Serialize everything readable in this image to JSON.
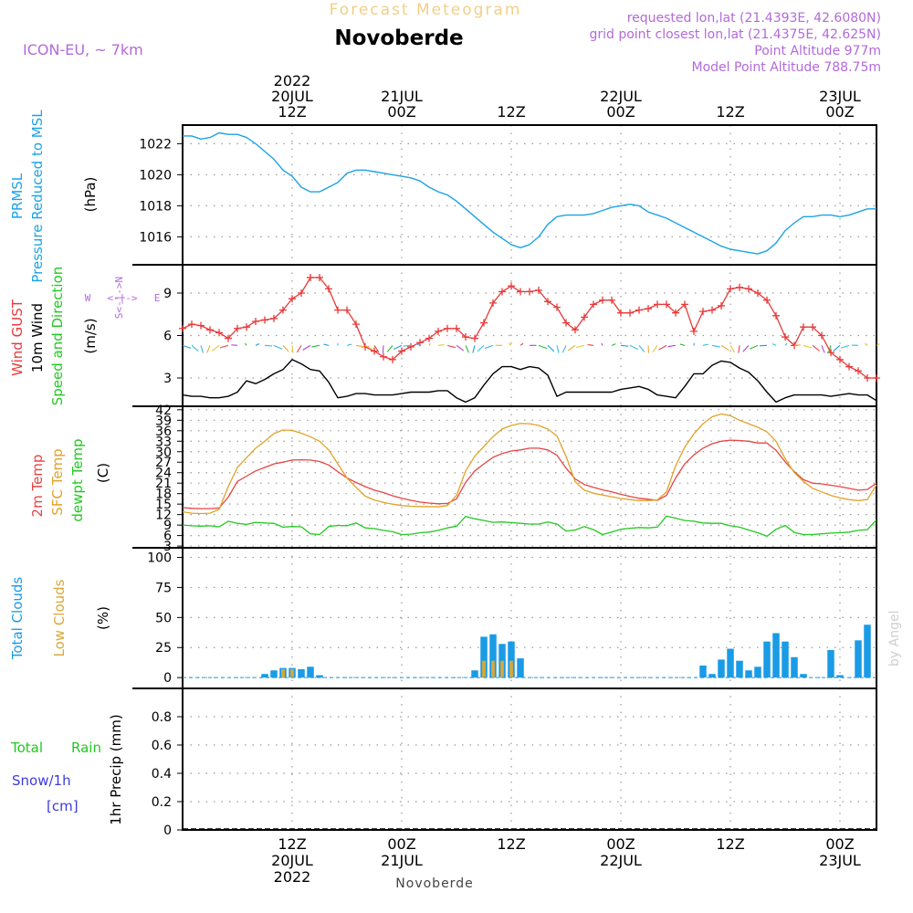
{
  "header": {
    "title": "Forecast Meteogram",
    "station": "Novoberde",
    "model": "ICON-EU, ~ 7km",
    "requested": "requested lon,lat (21.4393E, 42.6080N)",
    "gridpoint": "grid point closest lon,lat (21.4375E, 42.625N)",
    "point_alt": "Point Altitude 977m",
    "model_alt": "Model Point Altitude 788.75m",
    "credit": "by Angel",
    "footer_station": "Novoberde"
  },
  "colors": {
    "pressure": "#1ca3e6",
    "gust": "#e83a3a",
    "wind": "#000000",
    "temp2m": "#e84444",
    "sfctemp": "#e2a229",
    "dewpt": "#22c922",
    "total_clouds": "#1a9be6",
    "low_clouds": "#d9a838",
    "purple": "#b36ad9",
    "rain": "#22c922",
    "snow": "#3b3be0"
  },
  "time_axis": {
    "top_labels": [
      {
        "t": 12,
        "lines": [
          "2022",
          "20JUL",
          "12Z"
        ]
      },
      {
        "t": 24,
        "lines": [
          "21JUL",
          "00Z"
        ]
      },
      {
        "t": 36,
        "lines": [
          "12Z"
        ]
      },
      {
        "t": 48,
        "lines": [
          "22JUL",
          "00Z"
        ]
      },
      {
        "t": 60,
        "lines": [
          "12Z"
        ]
      },
      {
        "t": 72,
        "lines": [
          "23JUL",
          "00Z"
        ]
      }
    ],
    "bottom_labels": [
      {
        "t": 12,
        "lines": [
          "12Z",
          "20JUL",
          "2022"
        ]
      },
      {
        "t": 24,
        "lines": [
          "00Z",
          "21JUL"
        ]
      },
      {
        "t": 36,
        "lines": [
          "12Z"
        ]
      },
      {
        "t": 48,
        "lines": [
          "00Z",
          "22JUL"
        ]
      },
      {
        "t": 60,
        "lines": [
          "12Z"
        ]
      },
      {
        "t": 72,
        "lines": [
          "00Z",
          "23JUL"
        ]
      }
    ],
    "range": [
      0,
      76
    ]
  },
  "panels": {
    "pressure": {
      "labels": [
        "PRMSL",
        "Pressure Reduced to MSL"
      ],
      "unit": "(hPa)",
      "ylim": [
        1014.2,
        1023.2
      ],
      "ticks": [
        1016,
        1018,
        1020,
        1022
      ]
    },
    "wind": {
      "labels": [
        "Wind GUST",
        "10m Wind",
        "Speed and Direction"
      ],
      "unit": "(m/s)",
      "ylim": [
        1,
        11
      ],
      "ticks": [
        3,
        6,
        9
      ],
      "compass": {
        "w": "W",
        "e": "E",
        "n": "N",
        "s": "S",
        "h": "<-|->",
        "v1": "<-|->",
        "v2": "S<-|->N"
      }
    },
    "temp": {
      "labels": [
        "2m Temp",
        "SFC Temp",
        "dewpt Temp"
      ],
      "unit": "(C)",
      "ylim": [
        2.5,
        43
      ],
      "ticks": [
        3,
        6,
        9,
        12,
        15,
        18,
        21,
        24,
        27,
        30,
        33,
        36,
        39,
        42
      ]
    },
    "clouds": {
      "labels": [
        "Total Clouds",
        "Low Clouds"
      ],
      "unit": "(%)",
      "ylim": [
        -9,
        108
      ],
      "ticks": [
        0,
        25,
        50,
        75,
        100
      ]
    },
    "precip": {
      "labels": [
        "Total",
        "Rain",
        "Snow/1h",
        "[cm]"
      ],
      "unit": "1hr Precip (mm)",
      "ylim": [
        0,
        1.0
      ],
      "ticks": [
        "0",
        "0.2",
        "0.4",
        "0.6",
        "0.8"
      ]
    }
  },
  "chart_data": [
    {
      "type": "line",
      "title": "PRMSL Pressure Reduced to MSL",
      "ylabel": "(hPa)",
      "x": [
        0,
        1,
        2,
        3,
        4,
        5,
        6,
        7,
        8,
        9,
        10,
        11,
        12,
        13,
        14,
        15,
        16,
        17,
        18,
        19,
        20,
        21,
        22,
        23,
        24,
        25,
        26,
        27,
        28,
        29,
        30,
        31,
        32,
        33,
        34,
        35,
        36,
        37,
        38,
        39,
        40,
        41,
        42,
        43,
        44,
        45,
        46,
        47,
        48,
        49,
        50,
        51,
        52,
        53,
        54,
        55,
        56,
        57,
        58,
        59,
        60,
        61,
        62,
        63,
        64,
        65,
        66,
        67,
        68,
        69,
        70,
        71,
        72,
        73,
        74,
        75,
        76
      ],
      "values": [
        1022.5,
        1022.5,
        1022.3,
        1022.4,
        1022.7,
        1022.6,
        1022.6,
        1022.4,
        1022.0,
        1021.5,
        1021.0,
        1020.3,
        1019.9,
        1019.2,
        1018.9,
        1018.9,
        1019.2,
        1019.5,
        1020.1,
        1020.3,
        1020.3,
        1020.2,
        1020.1,
        1020.0,
        1019.9,
        1019.8,
        1019.6,
        1019.2,
        1018.9,
        1018.7,
        1018.3,
        1017.8,
        1017.3,
        1016.8,
        1016.3,
        1015.9,
        1015.5,
        1015.3,
        1015.5,
        1016.0,
        1016.8,
        1017.3,
        1017.4,
        1017.4,
        1017.4,
        1017.5,
        1017.7,
        1017.9,
        1018.0,
        1018.1,
        1018.0,
        1017.6,
        1017.4,
        1017.2,
        1016.9,
        1016.6,
        1016.3,
        1016.0,
        1015.7,
        1015.4,
        1015.2,
        1015.1,
        1015.0,
        1014.9,
        1015.1,
        1015.6,
        1016.4,
        1016.9,
        1017.3,
        1017.3,
        1017.4,
        1017.4,
        1017.3,
        1017.4,
        1017.6,
        1017.8,
        1017.8
      ],
      "ylim": [
        1014.2,
        1023.2
      ]
    },
    {
      "type": "line",
      "title": "Wind GUST / 10m Wind Speed and Direction",
      "ylabel": "(m/s)",
      "series": [
        {
          "name": "Wind GUST",
          "values": [
            6.5,
            6.8,
            6.7,
            6.4,
            6.2,
            5.8,
            6.5,
            6.6,
            7.0,
            7.1,
            7.2,
            7.8,
            8.6,
            9.0,
            10.1,
            10.1,
            9.3,
            7.8,
            7.8,
            6.8,
            5.2,
            4.9,
            4.5,
            4.3,
            4.9,
            5.2,
            5.5,
            5.8,
            6.3,
            6.5,
            6.5,
            5.9,
            5.8,
            6.9,
            8.3,
            9.1,
            9.5,
            9.1,
            9.1,
            9.2,
            8.4,
            8.0,
            6.9,
            6.4,
            7.3,
            8.2,
            8.5,
            8.5,
            7.6,
            7.6,
            7.8,
            7.9,
            8.2,
            8.2,
            7.6,
            8.2,
            6.3,
            7.7,
            7.8,
            8.1,
            9.3,
            9.4,
            9.3,
            9.0,
            8.5,
            7.4,
            5.9,
            5.3,
            6.6,
            6.6,
            6.0,
            4.8,
            4.3,
            3.8,
            3.5,
            3.0,
            3.0
          ]
        },
        {
          "name": "10m Wind",
          "values": [
            1.8,
            1.7,
            1.7,
            1.6,
            1.6,
            1.7,
            2.0,
            2.8,
            2.6,
            2.9,
            3.3,
            3.6,
            4.3,
            4.0,
            3.6,
            3.5,
            2.7,
            1.6,
            1.7,
            1.9,
            1.9,
            1.8,
            1.8,
            1.8,
            1.9,
            2.0,
            2.0,
            2.0,
            2.1,
            2.1,
            1.6,
            1.3,
            1.6,
            2.5,
            3.3,
            3.8,
            3.8,
            3.6,
            3.8,
            3.7,
            3.2,
            1.7,
            2.0,
            2.0,
            2.0,
            2.0,
            2.0,
            2.0,
            2.2,
            2.3,
            2.4,
            2.2,
            1.8,
            1.7,
            1.6,
            2.4,
            3.3,
            3.3,
            3.9,
            4.2,
            4.1,
            3.7,
            3.4,
            2.8,
            2.0,
            1.3,
            1.6,
            1.8,
            1.8,
            1.8,
            1.8,
            1.7,
            1.8,
            1.9,
            1.8,
            1.8,
            1.4
          ]
        }
      ],
      "x": [
        0,
        1,
        2,
        3,
        4,
        5,
        6,
        7,
        8,
        9,
        10,
        11,
        12,
        13,
        14,
        15,
        16,
        17,
        18,
        19,
        20,
        21,
        22,
        23,
        24,
        25,
        26,
        27,
        28,
        29,
        30,
        31,
        32,
        33,
        34,
        35,
        36,
        37,
        38,
        39,
        40,
        41,
        42,
        43,
        44,
        45,
        46,
        47,
        48,
        49,
        50,
        51,
        52,
        53,
        54,
        55,
        56,
        57,
        58,
        59,
        60,
        61,
        62,
        63,
        64,
        65,
        66,
        67,
        68,
        69,
        70,
        71,
        72,
        73,
        74,
        75,
        76
      ],
      "ylim": [
        1,
        11
      ]
    },
    {
      "type": "line",
      "title": "2m Temp / SFC Temp / dewpt Temp",
      "ylabel": "(C)",
      "x": [
        0,
        1,
        2,
        3,
        4,
        5,
        6,
        7,
        8,
        9,
        10,
        11,
        12,
        13,
        14,
        15,
        16,
        17,
        18,
        19,
        20,
        21,
        22,
        23,
        24,
        25,
        26,
        27,
        28,
        29,
        30,
        31,
        32,
        33,
        34,
        35,
        36,
        37,
        38,
        39,
        40,
        41,
        42,
        43,
        44,
        45,
        46,
        47,
        48,
        49,
        50,
        51,
        52,
        53,
        54,
        55,
        56,
        57,
        58,
        59,
        60,
        61,
        62,
        63,
        64,
        65,
        66,
        67,
        68,
        69,
        70,
        71,
        72,
        73,
        74,
        75,
        76
      ],
      "series": [
        {
          "name": "2m Temp",
          "values": [
            14,
            13.8,
            13.7,
            13.7,
            13.9,
            17,
            21.5,
            23,
            24.5,
            25.5,
            26.5,
            27,
            27.6,
            27.7,
            27.6,
            27.2,
            26.2,
            24.3,
            22.5,
            21.2,
            20,
            19,
            18.3,
            17.4,
            16.7,
            16.1,
            15.6,
            15.3,
            15.1,
            15.2,
            16.5,
            21.2,
            24.5,
            26.5,
            28.4,
            29.5,
            30.2,
            30.5,
            31,
            31,
            30.5,
            29,
            25.3,
            22.2,
            20.6,
            19.8,
            19.1,
            18.5,
            17.8,
            17.2,
            16.7,
            16.4,
            16.1,
            17.5,
            22.5,
            26.5,
            29.1,
            31,
            32.3,
            33,
            33.3,
            33.2,
            33,
            32.5,
            32.5,
            30.4,
            27.1,
            24.3,
            22,
            21,
            20.8,
            20.4,
            20,
            19.5,
            19,
            19.2,
            21
          ]
        },
        {
          "name": "SFC Temp",
          "values": [
            12.8,
            12.4,
            12.3,
            12.4,
            13.5,
            20,
            25.5,
            28.3,
            31,
            33,
            35.2,
            36.2,
            36.1,
            35.3,
            34.3,
            33,
            30.5,
            26.5,
            22.5,
            19.8,
            17.3,
            16.2,
            15.5,
            15,
            14.6,
            14.4,
            14.3,
            14.3,
            14.2,
            14.6,
            17.5,
            24.5,
            28.7,
            31.5,
            34.3,
            36.5,
            37.5,
            38.1,
            38,
            37.5,
            36.5,
            34.5,
            28.7,
            21.4,
            19,
            18.1,
            17.6,
            17.1,
            16.6,
            16.3,
            16.0,
            16.0,
            16.2,
            18.5,
            26,
            31.3,
            35.1,
            38,
            40,
            40.8,
            40.3,
            39,
            38,
            37,
            35.7,
            33,
            28,
            24,
            21.5,
            19.5,
            18.5,
            17.5,
            16.8,
            16.3,
            16.0,
            16.3,
            20.5
          ]
        },
        {
          "name": "dewpt Temp",
          "values": [
            9,
            8.8,
            8.7,
            8.8,
            8.5,
            10.1,
            9.5,
            9.2,
            9.8,
            9.6,
            9.5,
            8.4,
            8.6,
            8.5,
            6.5,
            6.3,
            8.6,
            8.9,
            8.8,
            9.6,
            8.2,
            8.0,
            7.5,
            7.1,
            6.3,
            6.4,
            6.8,
            7.0,
            7.5,
            8.2,
            8.7,
            11.5,
            10.8,
            10.3,
            9.8,
            9.9,
            9.7,
            9.5,
            9.3,
            9.3,
            9.9,
            9.3,
            7.3,
            7.6,
            8.6,
            7.7,
            6.3,
            7.0,
            7.8,
            8.1,
            8.3,
            8.2,
            8.4,
            11.6,
            11,
            10.3,
            10.1,
            9.6,
            9.5,
            9.5,
            8.8,
            8.4,
            7.6,
            6.8,
            5.8,
            7.8,
            8.9,
            6.9,
            6.3,
            6.3,
            6.5,
            6.7,
            6.8,
            7.0,
            7.5,
            7.7,
            10.5
          ]
        }
      ],
      "ylim": [
        2.5,
        43
      ]
    },
    {
      "type": "bar",
      "title": "Total Clouds / Low Clouds",
      "ylabel": "(%)",
      "series": [
        {
          "name": "Total Clouds",
          "points": [
            [
              9,
              3
            ],
            [
              10,
              6
            ],
            [
              11,
              8
            ],
            [
              12,
              8
            ],
            [
              13,
              7
            ],
            [
              14,
              9
            ],
            [
              15,
              2
            ],
            [
              32,
              6
            ],
            [
              33,
              34
            ],
            [
              34,
              36
            ],
            [
              35,
              28
            ],
            [
              36,
              30
            ],
            [
              37,
              16
            ],
            [
              57,
              10
            ],
            [
              58,
              3
            ],
            [
              59,
              15
            ],
            [
              60,
              24
            ],
            [
              61,
              14
            ],
            [
              62,
              6
            ],
            [
              63,
              9
            ],
            [
              64,
              30
            ],
            [
              65,
              37
            ],
            [
              66,
              30
            ],
            [
              67,
              17
            ],
            [
              68,
              3
            ],
            [
              71,
              23
            ],
            [
              72,
              2
            ],
            [
              74,
              31
            ],
            [
              75,
              44
            ]
          ]
        },
        {
          "name": "Low Clouds",
          "points": [
            [
              11,
              7
            ],
            [
              12,
              7
            ],
            [
              33,
              14
            ],
            [
              34,
              14
            ],
            [
              35,
              14
            ],
            [
              36,
              14
            ]
          ]
        }
      ],
      "ylim": [
        -9,
        108
      ]
    },
    {
      "type": "bar",
      "title": "1hr Precip",
      "ylabel": "1hr Precip (mm)",
      "series": [
        {
          "name": "Total",
          "values": []
        },
        {
          "name": "Rain",
          "values": []
        },
        {
          "name": "Snow/1h",
          "values": []
        }
      ],
      "ylim": [
        0,
        1.0
      ]
    }
  ]
}
